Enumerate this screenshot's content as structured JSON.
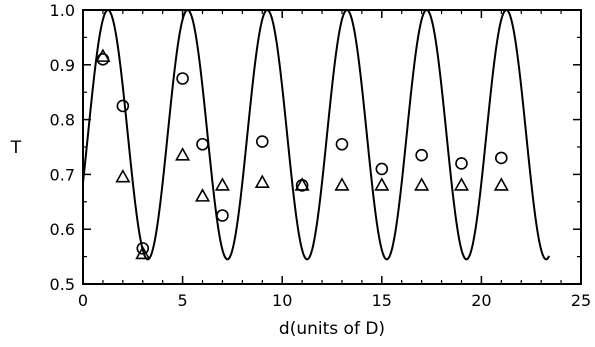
{
  "chart_data": {
    "type": "scatter",
    "title": "",
    "xlabel": "d(units of D)",
    "ylabel": "T",
    "xlim": [
      0,
      25
    ],
    "ylim": [
      0.5,
      1.0
    ],
    "grid": false,
    "xticks": [
      0,
      5,
      10,
      15,
      20,
      25
    ],
    "yticks": [
      0.5,
      0.6,
      0.7,
      0.8,
      0.9,
      1.0
    ],
    "xtick_labels": [
      "0",
      "5",
      "10",
      "15",
      "20",
      "25"
    ],
    "ytick_labels": [
      "0.5",
      "0.6",
      "0.7",
      "0.8",
      "0.9",
      "1.0"
    ],
    "series": [
      {
        "marker": "line",
        "color": "#000000",
        "curve": {
          "period": 4,
          "peak_x": 1.25,
          "min": 0.545,
          "max": 1.0,
          "x_start": 0,
          "x_end": 23.4
        }
      },
      {
        "marker": "circle",
        "color": "#000000",
        "points": [
          [
            1,
            0.91
          ],
          [
            2,
            0.825
          ],
          [
            3,
            0.565
          ],
          [
            5,
            0.875
          ],
          [
            6,
            0.755
          ],
          [
            7,
            0.625
          ],
          [
            9,
            0.76
          ],
          [
            11,
            0.68
          ],
          [
            13,
            0.755
          ],
          [
            15,
            0.71
          ],
          [
            17,
            0.735
          ],
          [
            19,
            0.72
          ],
          [
            21,
            0.73
          ]
        ]
      },
      {
        "marker": "triangle",
        "color": "#000000",
        "points": [
          [
            1,
            0.915
          ],
          [
            2,
            0.695
          ],
          [
            3,
            0.555
          ],
          [
            5,
            0.735
          ],
          [
            6,
            0.66
          ],
          [
            7,
            0.68
          ],
          [
            9,
            0.685
          ],
          [
            11,
            0.68
          ],
          [
            13,
            0.68
          ],
          [
            15,
            0.68
          ],
          [
            17,
            0.68
          ],
          [
            19,
            0.68
          ],
          [
            21,
            0.68
          ]
        ]
      }
    ]
  }
}
